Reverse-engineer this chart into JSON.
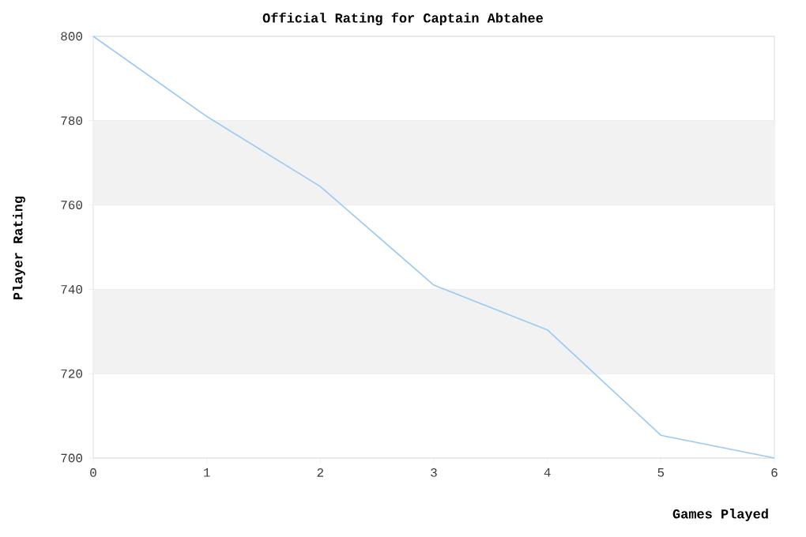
{
  "chart_data": {
    "type": "line",
    "title": "Official Rating for Captain Abtahee",
    "xlabel": "Games Played",
    "ylabel": "Player Rating",
    "x": [
      0,
      1,
      2,
      3,
      4,
      5,
      6
    ],
    "series": [
      {
        "color": "#99c9f5",
        "values": [
          800,
          781,
          764.4,
          741,
          730.4,
          705.4,
          700
        ]
      }
    ],
    "xlim": [
      0,
      6
    ],
    "xticks": [
      0,
      1,
      2,
      3,
      4,
      5,
      6
    ],
    "ylim": [
      700,
      800
    ],
    "yticks": [
      700,
      720,
      740,
      760,
      780,
      800
    ],
    "grid": "y",
    "marker": "none",
    "line_style": "solid",
    "bands": [
      {
        "axis": "y",
        "from": 720,
        "to": 740,
        "color": "#f2f2f2"
      },
      {
        "axis": "y",
        "from": 760,
        "to": 780,
        "color": "#f2f2f2"
      }
    ]
  }
}
